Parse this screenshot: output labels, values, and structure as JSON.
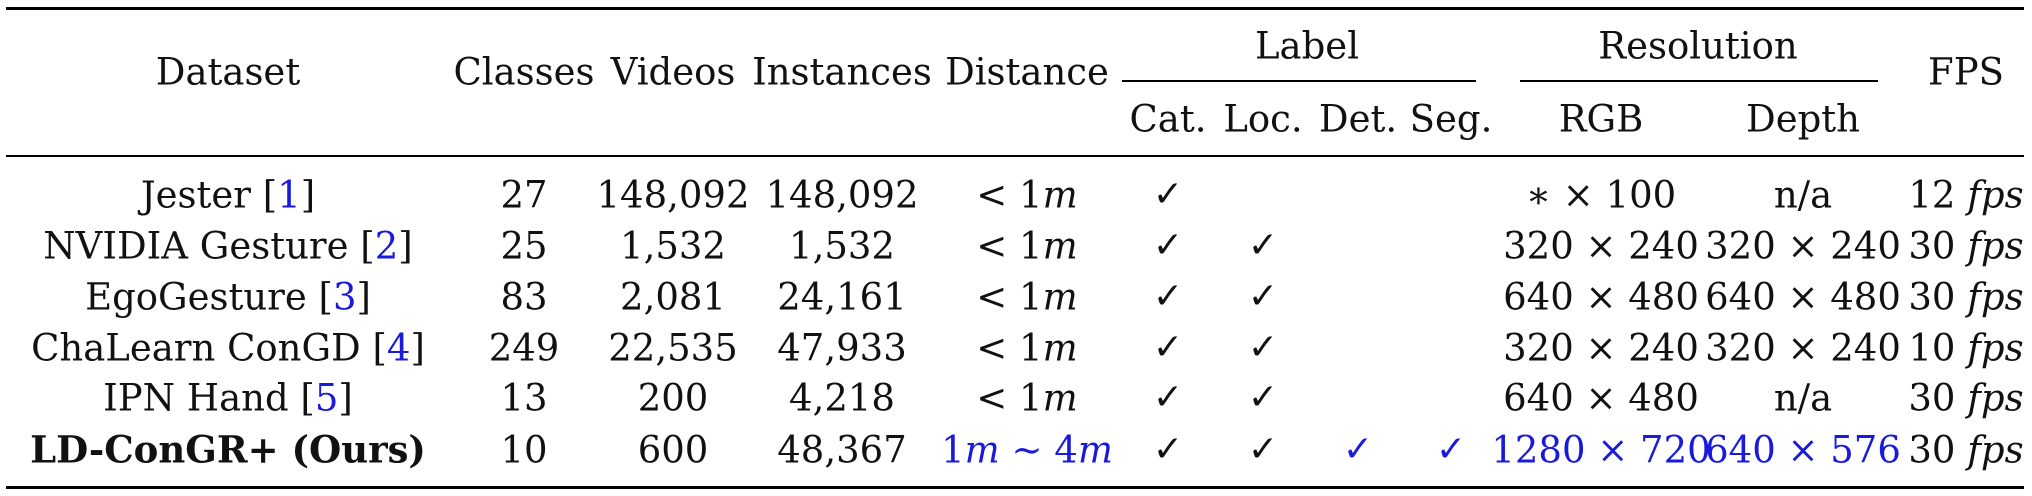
{
  "table": {
    "headers": {
      "dataset": "Dataset",
      "classes": "Classes",
      "videos": "Videos",
      "instances": "Instances",
      "distance": "Distance",
      "label_group": "Label",
      "label_cat": "Cat.",
      "label_loc": "Loc.",
      "label_det": "Det.",
      "label_seg": "Seg.",
      "resolution_group": "Resolution",
      "res_rgb": "RGB",
      "res_depth": "Depth",
      "fps": "FPS"
    },
    "check_mark": "✓",
    "rows": [
      {
        "dataset": "Jester [",
        "cite": "1",
        "classes": "27",
        "videos": "148,092",
        "instances": "148,092",
        "distance": "< 1",
        "distance_unit": "m",
        "cat": true,
        "loc": false,
        "det": false,
        "seg": false,
        "rgb": "∗ × 100",
        "depth": "n/a",
        "fps_value": "12",
        "fps_unit": "fps"
      },
      {
        "dataset": "NVIDIA Gesture [",
        "cite": "2",
        "classes": "25",
        "videos": "1,532",
        "instances": "1,532",
        "distance": "< 1",
        "distance_unit": "m",
        "cat": true,
        "loc": true,
        "det": false,
        "seg": false,
        "rgb": "320 × 240",
        "depth": "320 × 240",
        "fps_value": "30",
        "fps_unit": "fps"
      },
      {
        "dataset": "EgoGesture [",
        "cite": "3",
        "classes": "83",
        "videos": "2,081",
        "instances": "24,161",
        "distance": "< 1",
        "distance_unit": "m",
        "cat": true,
        "loc": true,
        "det": false,
        "seg": false,
        "rgb": "640 × 480",
        "depth": "640 × 480",
        "fps_value": "30",
        "fps_unit": "fps"
      },
      {
        "dataset": "ChaLearn ConGD [",
        "cite": "4",
        "classes": "249",
        "videos": "22,535",
        "instances": "47,933",
        "distance": "< 1",
        "distance_unit": "m",
        "cat": true,
        "loc": true,
        "det": false,
        "seg": false,
        "rgb": "320 × 240",
        "depth": "320 × 240",
        "fps_value": "10",
        "fps_unit": "fps"
      },
      {
        "dataset": "IPN Hand [",
        "cite": "5",
        "classes": "13",
        "videos": "200",
        "instances": "4,218",
        "distance": "< 1",
        "distance_unit": "m",
        "cat": true,
        "loc": true,
        "det": false,
        "seg": false,
        "rgb": "640 × 480",
        "depth": "n/a",
        "fps_value": "30",
        "fps_unit": "fps"
      }
    ],
    "ours": {
      "dataset": "LD-ConGR+ (Ours)",
      "classes": "10",
      "videos": "600",
      "instances": "48,367",
      "distance_a": "1",
      "distance_a_unit": "m",
      "distance_sep": " ∼ 4",
      "distance_b_unit": "m",
      "cat": true,
      "loc": true,
      "det": true,
      "seg": true,
      "rgb": "1280 × 720",
      "depth": "640 × 576",
      "fps_value": "30",
      "fps_unit": "fps"
    },
    "colors": {
      "highlight": "#1a1adc",
      "text": "#111111",
      "rule": "#000000"
    }
  }
}
